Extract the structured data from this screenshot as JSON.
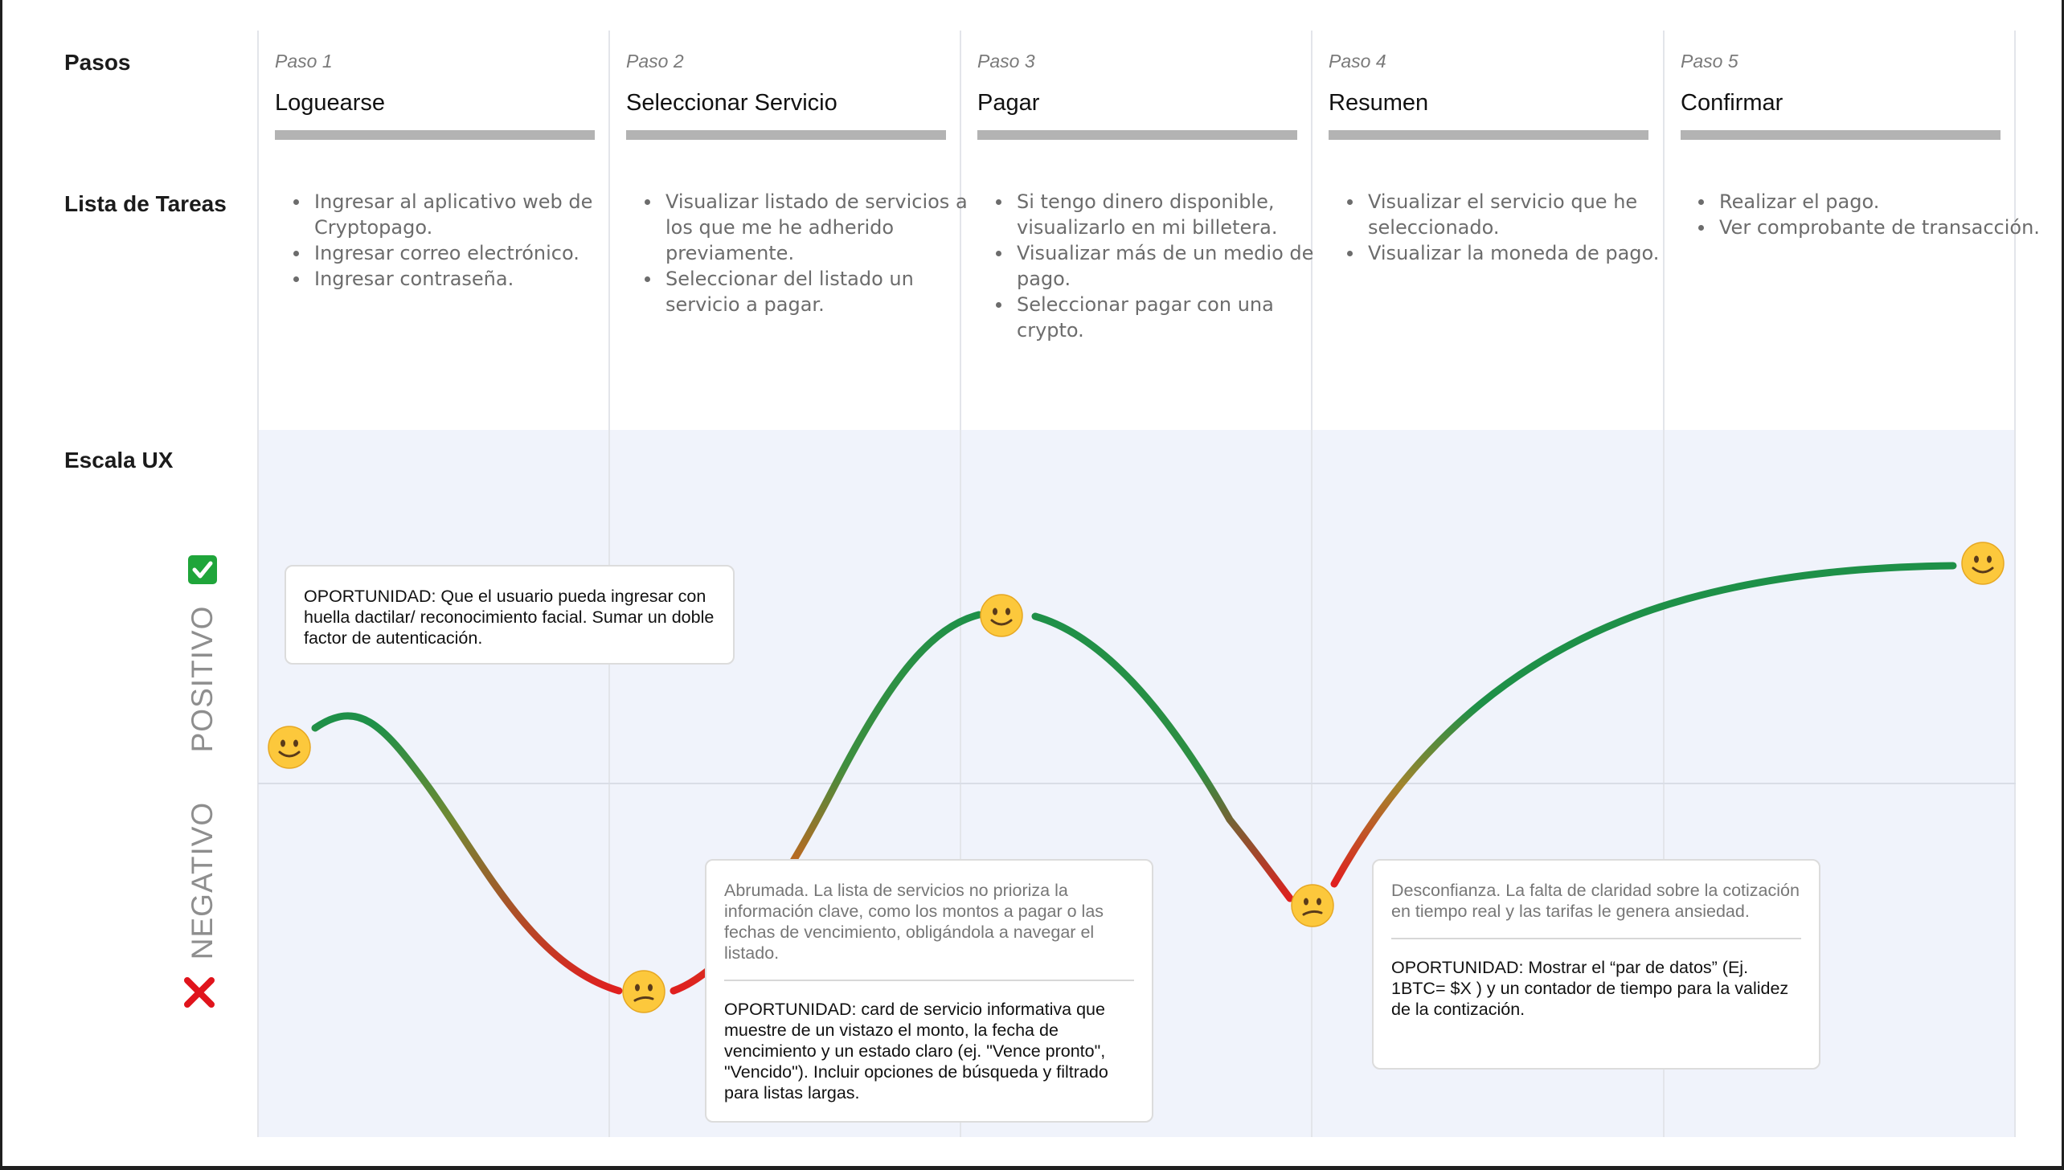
{
  "row_labels": {
    "steps": "Pasos",
    "tasks": "Lista de Tareas",
    "ux_scale": "Escala UX"
  },
  "steps": [
    {
      "number": "Paso 1",
      "name": "Loguearse",
      "tasks": [
        "Ingresar al aplicativo web de Cryptopago.",
        "Ingresar correo electrónico.",
        "Ingresar contraseña."
      ]
    },
    {
      "number": "Paso 2",
      "name": "Seleccionar Servicio",
      "tasks": [
        "Visualizar listado de servicios a los que me he adherido previamente.",
        "Seleccionar del listado un servicio a pagar."
      ]
    },
    {
      "number": "Paso 3",
      "name": "Pagar",
      "tasks": [
        "Si tengo dinero disponible, visualizarlo en mi billetera.",
        "Visualizar más de un medio de pago.",
        "Seleccionar pagar con una crypto."
      ]
    },
    {
      "number": "Paso 4",
      "name": "Resumen",
      "tasks": [
        "Visualizar el servicio que he seleccionado.",
        "Visualizar la moneda de pago."
      ]
    },
    {
      "number": "Paso 5",
      "name": "Confirmar",
      "tasks": [
        "Realizar el pago.",
        "Ver comprobante de transacción."
      ]
    }
  ],
  "axis": {
    "positive": "POSITIVO",
    "negative": "NEGATIVO",
    "positive_icon": "check-icon",
    "negative_icon": "cross-icon"
  },
  "emotions": [
    {
      "step": "Paso 1",
      "mood": "happy",
      "icon": "slightly-smiling-face"
    },
    {
      "step": "Paso 2",
      "mood": "confused",
      "icon": "confused-face"
    },
    {
      "step": "Paso 3",
      "mood": "happy",
      "icon": "slightly-smiling-face"
    },
    {
      "step": "Paso 4",
      "mood": "confused",
      "icon": "confused-face"
    },
    {
      "step": "Paso 5",
      "mood": "happy",
      "icon": "slightly-smiling-face"
    }
  ],
  "notes": {
    "step1": {
      "opportunity": "OPORTUNIDAD: Que el usuario pueda ingresar con huella dactilar/ reconocimiento facial. Sumar un doble factor de autenticación."
    },
    "step2": {
      "pain": "Abrumada. La lista de servicios no prioriza la información clave, como los montos a pagar o las fechas de vencimiento, obligándola a navegar el listado.",
      "opportunity": "OPORTUNIDAD: card de servicio informativa que muestre de un vistazo el monto, la fecha de vencimiento y un estado claro (ej. \"Vence pronto\", \"Vencido\"). Incluir opciones de búsqueda y filtrado para listas largas."
    },
    "step4": {
      "pain": "Desconfianza. La falta de claridad sobre la cotización en tiempo real y las tarifas le genera ansiedad.",
      "opportunity": "OPORTUNIDAD: Mostrar el “par de datos” (Ej. 1BTC= $X ) y un contador de tiempo para la validez de la contización."
    }
  },
  "colors": {
    "positive_curve": "#1e9048",
    "negative_curve": "#e01f1f",
    "ux_band": "#f0f3fb",
    "progress_bar": "#b3b3b3"
  }
}
